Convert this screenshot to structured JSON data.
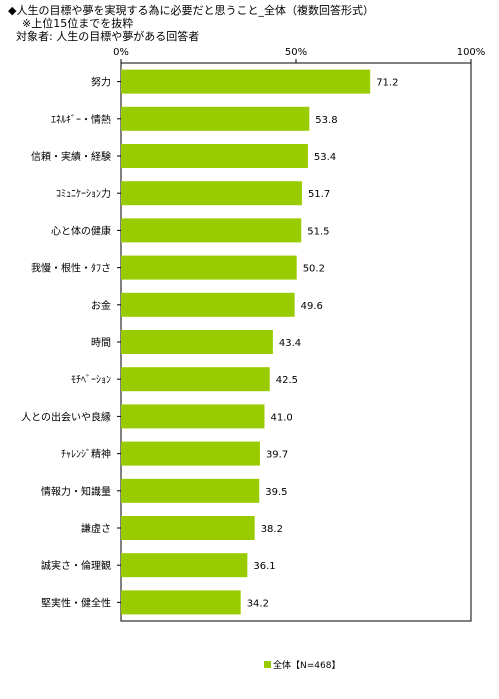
{
  "titles": {
    "line1": "◆人生の目標や夢を実現する為に必要だと思うこと_全体（複数回答形式）",
    "line2": "※上位15位までを抜粋",
    "line3": "対象者: 人生の目標や夢がある回答者"
  },
  "colors": {
    "bar": "#99CC00",
    "axis": "#000000"
  },
  "legend": {
    "label": "全体【N=468】"
  },
  "chart_data": {
    "type": "bar",
    "orientation": "horizontal",
    "categories": [
      "努力",
      "ｴﾈﾙｷﾞｰ・情熱",
      "信頼・実績・経験",
      "ｺﾐｭﾆｹｰｼｮﾝ力",
      "心と体の健康",
      "我慢・根性・ﾀﾌさ",
      "お金",
      "時間",
      "ﾓﾁﾍﾞｰｼｮﾝ",
      "人との出会いや良縁",
      "ﾁｬﾚﾝｼﾞ精神",
      "情報力・知識量",
      "謙虚さ",
      "誠実さ・倫理観",
      "堅実性・健全性"
    ],
    "series": [
      {
        "name": "全体【N=468】",
        "values": [
          71.2,
          53.8,
          53.4,
          51.7,
          51.5,
          50.2,
          49.6,
          43.4,
          42.5,
          41.0,
          39.7,
          39.5,
          38.2,
          36.1,
          34.2
        ]
      }
    ],
    "value_labels": [
      "71.2",
      "53.8",
      "53.4",
      "51.7",
      "51.5",
      "50.2",
      "49.6",
      "43.4",
      "42.5",
      "41.0",
      "39.7",
      "39.5",
      "38.2",
      "36.1",
      "34.2"
    ],
    "xlim": [
      0,
      100
    ],
    "xticks": [
      0,
      50,
      100
    ],
    "xtick_labels": [
      "0%",
      "50%",
      "100%"
    ],
    "grid": false,
    "legend_position": "bottom"
  }
}
